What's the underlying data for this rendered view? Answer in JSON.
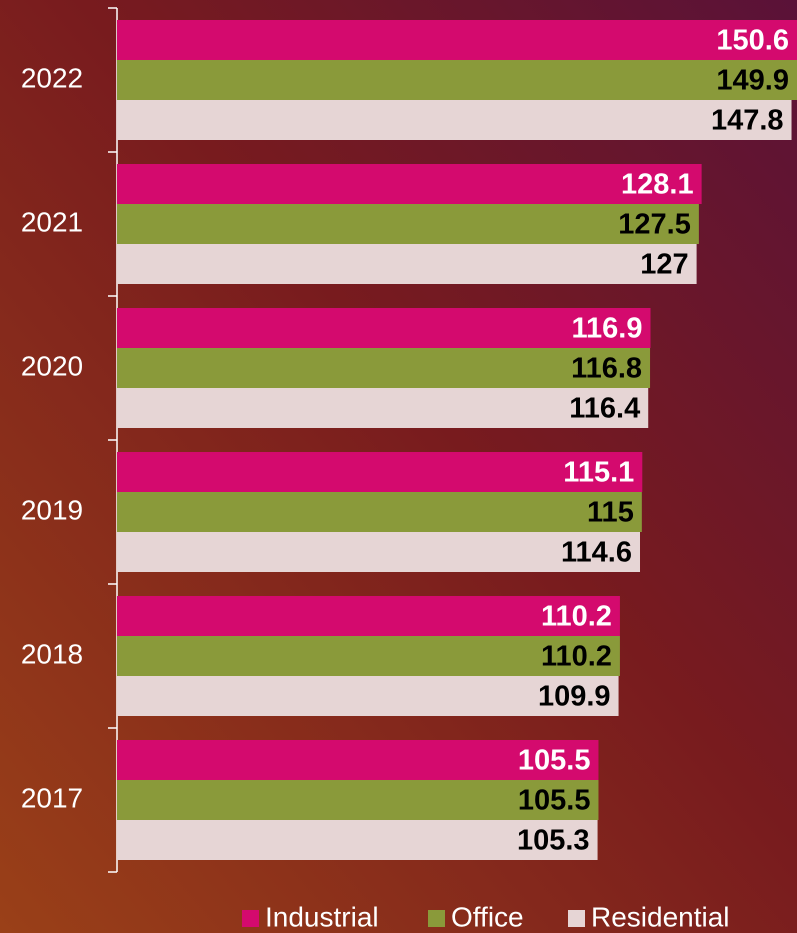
{
  "chart_data": {
    "type": "bar",
    "orientation": "horizontal",
    "categories": [
      "2022",
      "2021",
      "2020",
      "2019",
      "2018",
      "2017"
    ],
    "series": [
      {
        "name": "Industrial",
        "color": "#d40a6e",
        "values": [
          150.6,
          128.1,
          116.9,
          115.1,
          110.2,
          105.5
        ]
      },
      {
        "name": "Office",
        "color": "#8a9a3a",
        "values": [
          149.9,
          127.5,
          116.8,
          115,
          110.2,
          105.5
        ]
      },
      {
        "name": "Residential",
        "color": "#e6d5d5",
        "values": [
          147.8,
          127,
          116.4,
          114.6,
          109.9,
          105.3
        ]
      }
    ],
    "xlim": [
      0,
      149
    ],
    "legend": "bottom"
  }
}
